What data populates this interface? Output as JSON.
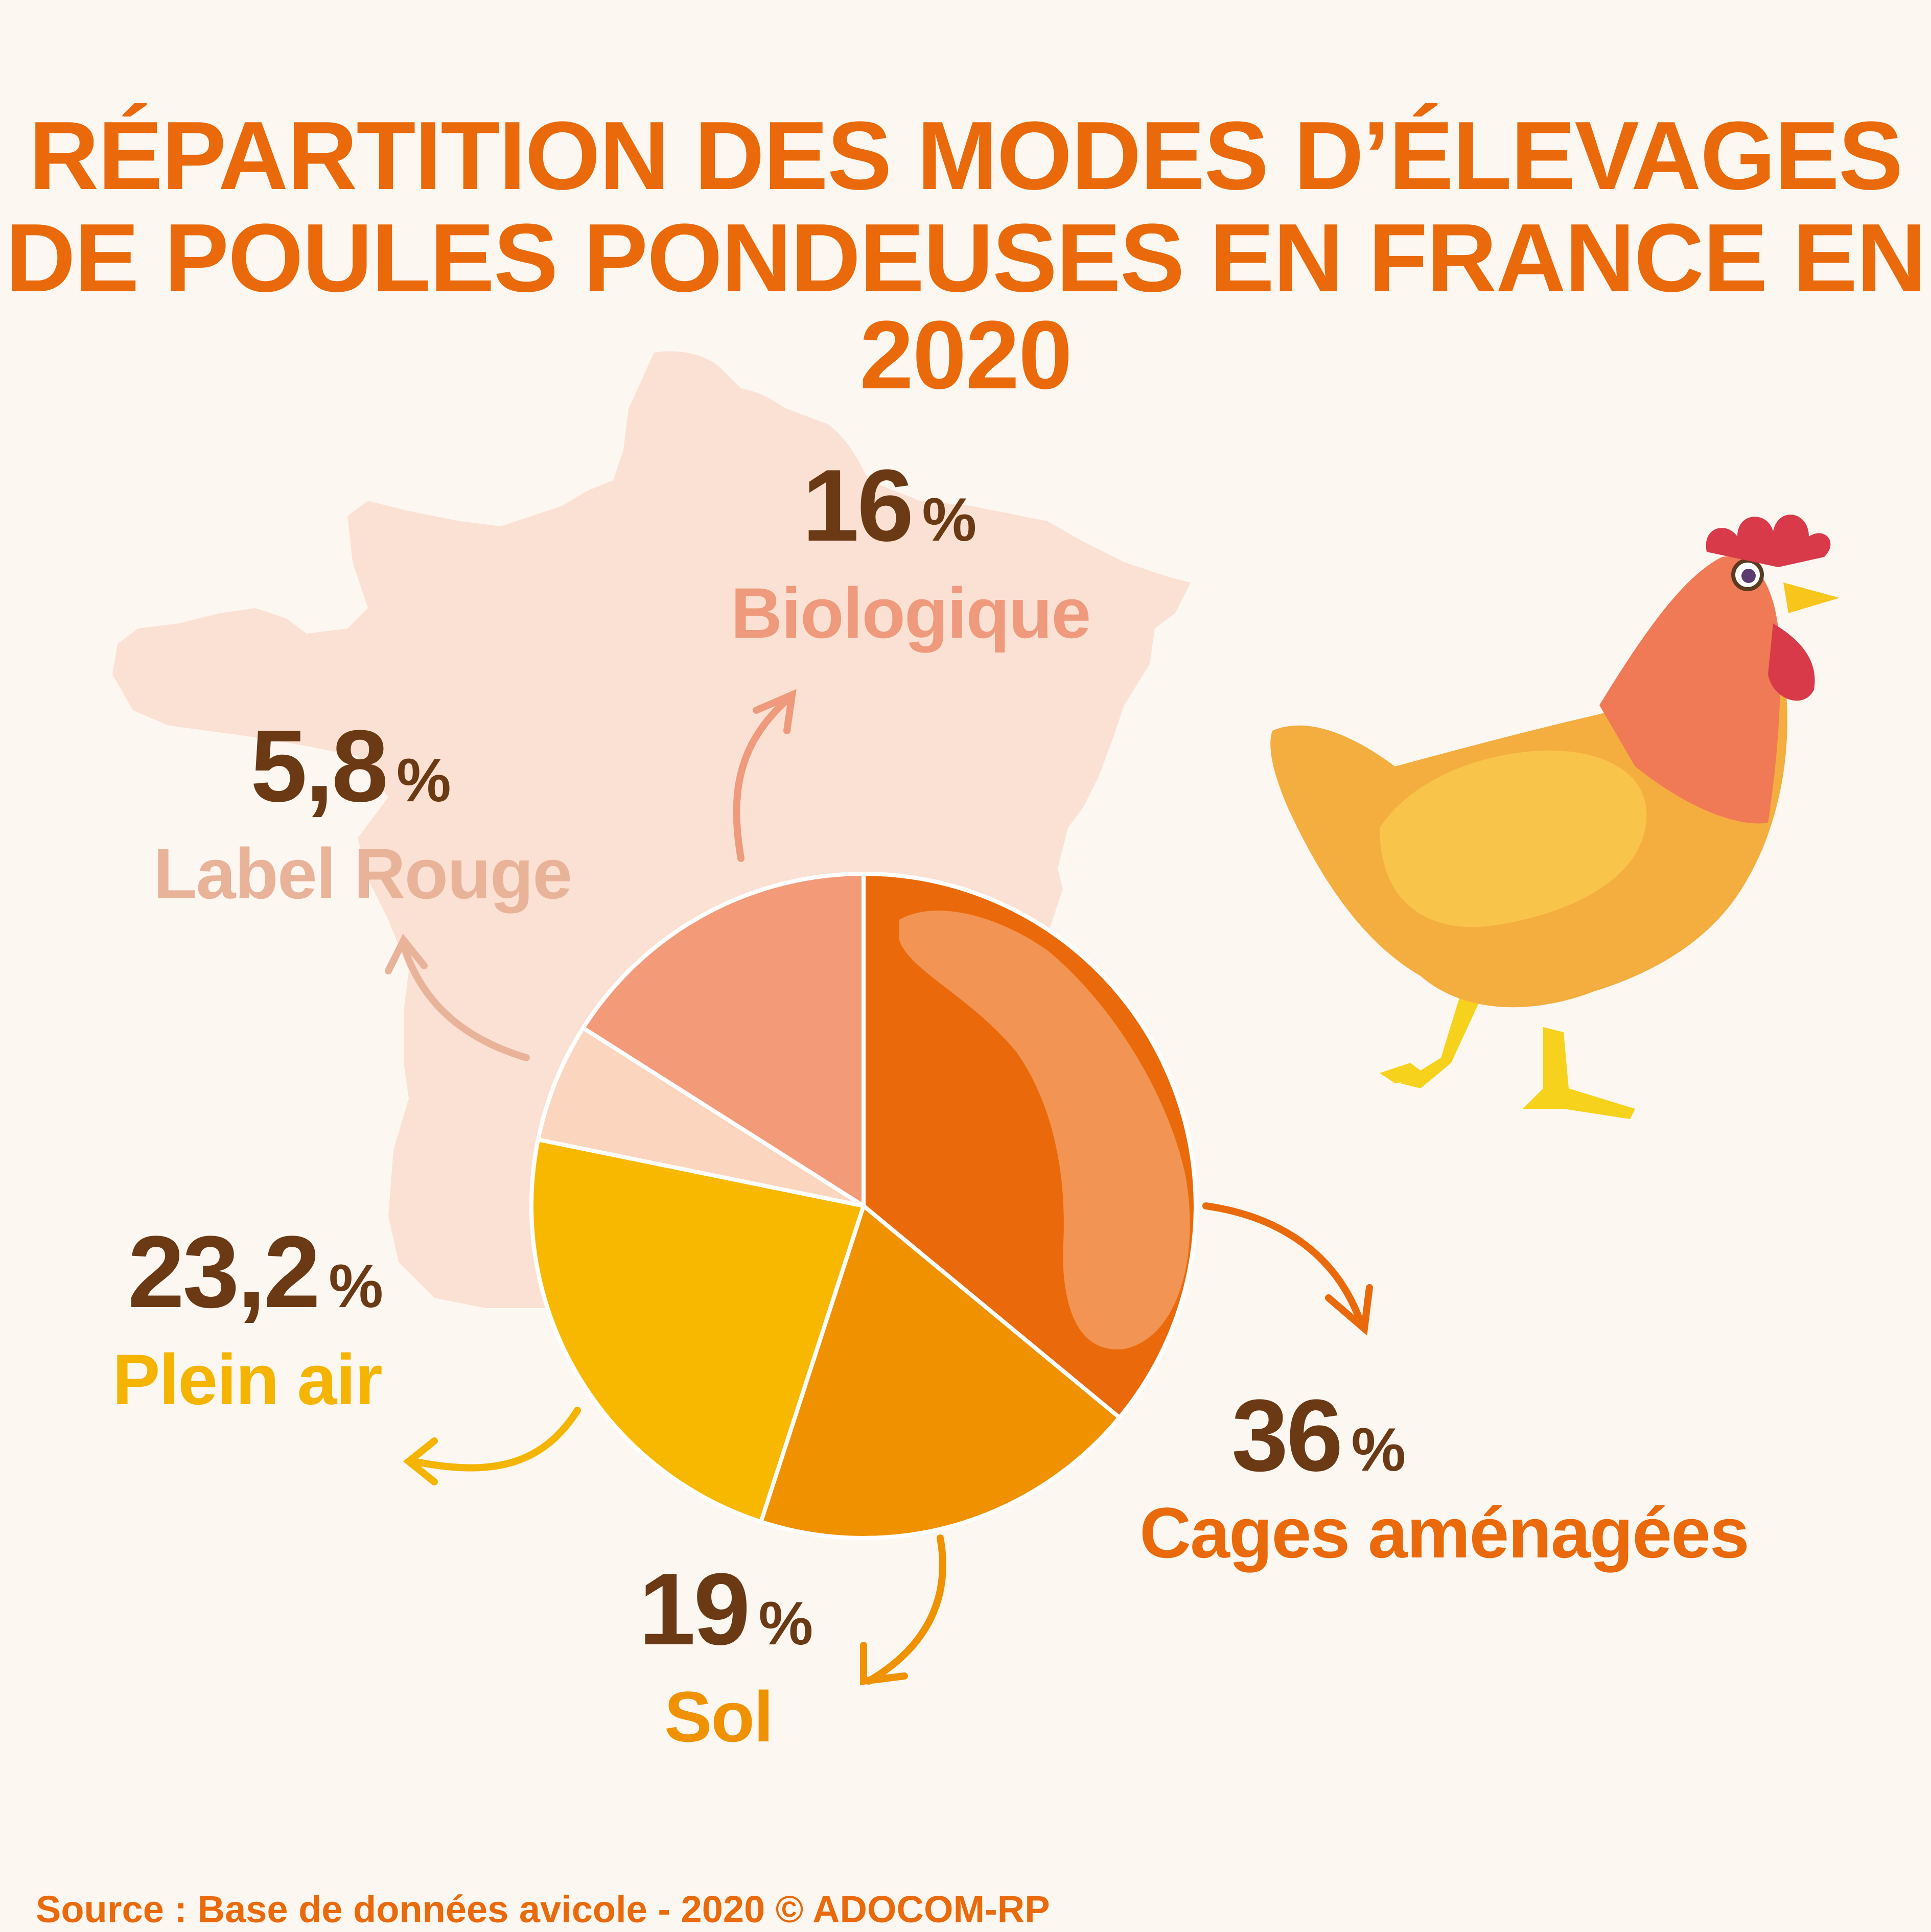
{
  "title": {
    "line1": "RÉPARTITION DES MODES D’ÉLEVAGES",
    "line2": "DE POULES PONDEUSES EN FRANCE EN 2020"
  },
  "chart_data": {
    "type": "pie",
    "title": "RÉPARTITION DES MODES D’ÉLEVAGES DE POULES PONDEUSES EN FRANCE EN 2020",
    "slices": [
      {
        "label": "Cages aménagées",
        "value": 36,
        "value_text": "36",
        "color": "#ea6a0b",
        "label_color": "#ea6a0b"
      },
      {
        "label": "Sol",
        "value": 19,
        "value_text": "19",
        "color": "#f09200",
        "label_color": "#f09200"
      },
      {
        "label": "Plein air",
        "value": 23.2,
        "value_text": "23,2",
        "color": "#f9b800",
        "label_color": "#f4b400"
      },
      {
        "label": "Label Rouge",
        "value": 5.8,
        "value_text": "5,8",
        "color": "#fbd5bd",
        "label_color": "#e9b39a"
      },
      {
        "label": "Biologique",
        "value": 16,
        "value_text": "16",
        "color": "#f39a79",
        "label_color": "#ef9a7c"
      }
    ],
    "percent_sign": "%",
    "start_angle_deg": 0,
    "direction": "clockwise"
  },
  "source": "Source : Base de données avicole - 2020  © ADOCOM-RP",
  "colors": {
    "background": "#fdf7f2",
    "title": "#ea6a0b",
    "value_text": "#6b3a14",
    "map": "#fbe1d3"
  }
}
